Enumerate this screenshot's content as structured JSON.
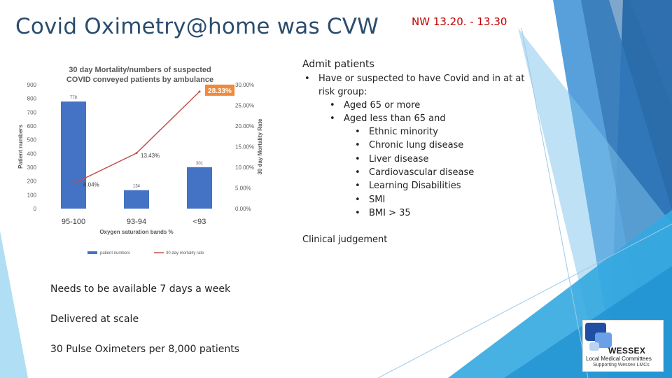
{
  "slide": {
    "title": "Covid Oximetry@home was CVW",
    "subtitle": "NW 13.20. - 13.30"
  },
  "admit": {
    "heading": "Admit patients",
    "line1a": "Have or suspected to have Covid and in at at",
    "line1b": "risk group:",
    "sub1": "Aged 65 or more",
    "sub2": "Aged less than 65 and",
    "conditions": [
      "Ethnic minority",
      "Chronic lung disease",
      "Liver disease",
      "Cardiovascular disease",
      "Learning Disabilities",
      "SMI",
      "BMI > 35"
    ],
    "clinical": "Clinical judgement"
  },
  "bottom": {
    "line1": "Needs to be available 7 days a week",
    "line2": "Delivered at scale",
    "line3": "30 Pulse Oximeters per 8,000 patients"
  },
  "logo": {
    "name": "WESSEX",
    "line2": "Local Medical Committees",
    "line3": "Supporting Wessex LMCs"
  },
  "colors": {
    "bar": "#4472c4",
    "line": "#c0504d",
    "highlight": "#f08a3c",
    "title": "#2a4d6e",
    "accent": "#c00000"
  },
  "chart_data": {
    "type": "bar",
    "title": "30 day Mortality/numbers of suspected COVID conveyed patients by ambulance",
    "categories": [
      "95-100",
      "93-94",
      "<93"
    ],
    "xlabel": "Oxygen saturation bands %",
    "ylabel": "Patient numbers",
    "y2label": "30 day Mortality Rate",
    "ylim": [
      0,
      900
    ],
    "y2lim": [
      0,
      30
    ],
    "yticks": [
      "0",
      "100",
      "200",
      "300",
      "400",
      "500",
      "600",
      "700",
      "800",
      "900"
    ],
    "y2ticks": [
      "0.00%",
      "5.00%",
      "10.00%",
      "15.00%",
      "20.00%",
      "25.00%",
      "30.00%"
    ],
    "series": [
      {
        "name": "patient numbers",
        "type": "bar",
        "values": [
          778,
          134,
          301
        ],
        "labels": [
          "778",
          "134",
          "301"
        ]
      },
      {
        "name": "30 day mortality rate",
        "type": "line",
        "values": [
          6.04,
          13.43,
          28.33
        ],
        "labels": [
          "6.04%",
          "13.43%",
          "28.33%"
        ]
      }
    ],
    "legend": "bottom"
  }
}
